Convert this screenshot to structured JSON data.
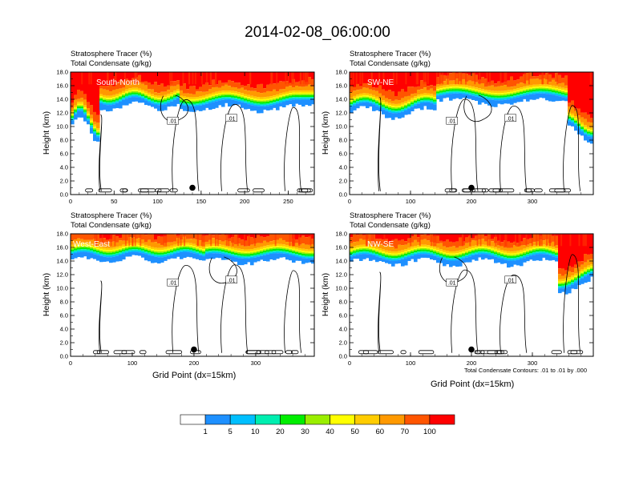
{
  "title": "2014-02-08_06:00:00",
  "subtitle_line1": "Stratosphere Tracer   (%)",
  "subtitle_line2": "Total Condensate   (g/kg)",
  "ylabel": "Height (km)",
  "xlabel": "Grid Point (dx=15km)",
  "contour_note": "Total Condensate Contours: .01 to .01 by .000",
  "contour_label": ".01",
  "y_ticks": [
    "0.0",
    "2.0",
    "4.0",
    "6.0",
    "8.0",
    "10.0",
    "12.0",
    "14.0",
    "16.0",
    "18.0"
  ],
  "colorbar": {
    "colors": [
      "#ffffff",
      "#1e90ff",
      "#00bfff",
      "#00eeb0",
      "#00ee00",
      "#9aee00",
      "#ffff00",
      "#ffcc00",
      "#ff9900",
      "#ff5500",
      "#ff0000"
    ],
    "labels": [
      "1",
      "5",
      "10",
      "20",
      "30",
      "40",
      "50",
      "60",
      "70",
      "100"
    ]
  },
  "chart_data": [
    {
      "type": "heatmap",
      "name": "South-North",
      "xlim": [
        0,
        280
      ],
      "ylim": [
        0,
        18
      ],
      "x_ticks": [
        0,
        50,
        100,
        150,
        200,
        250
      ],
      "contour_value": 0.01
    },
    {
      "type": "heatmap",
      "name": "SW-NE",
      "xlim": [
        0,
        400
      ],
      "ylim": [
        0,
        18
      ],
      "x_ticks": [
        0,
        100,
        200,
        300
      ],
      "contour_value": 0.01
    },
    {
      "type": "heatmap",
      "name": "West-East",
      "xlim": [
        0,
        395
      ],
      "ylim": [
        0,
        18
      ],
      "x_ticks": [
        0,
        100,
        200,
        300
      ],
      "contour_value": 0.01
    },
    {
      "type": "heatmap",
      "name": "NW-SE",
      "xlim": [
        0,
        400
      ],
      "ylim": [
        0,
        18
      ],
      "x_ticks": [
        0,
        100,
        200,
        300
      ],
      "contour_value": 0.01
    }
  ]
}
